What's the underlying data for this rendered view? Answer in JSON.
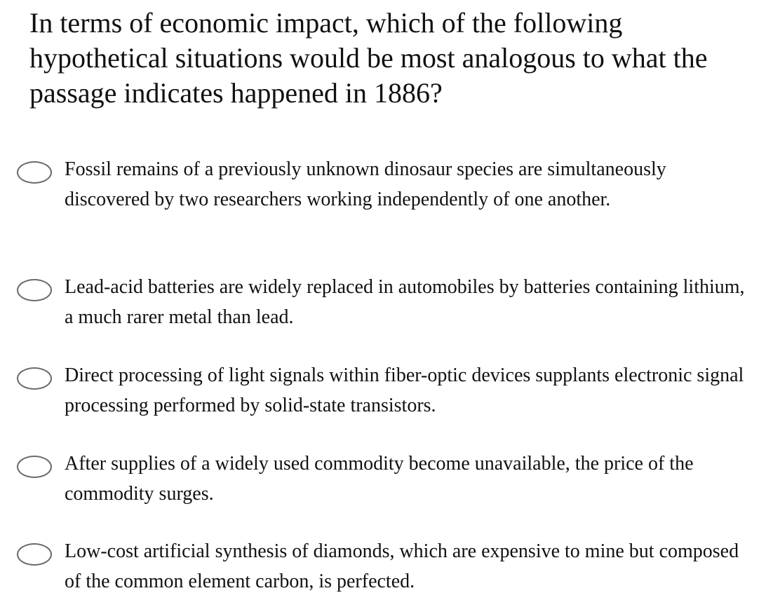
{
  "question": {
    "text": "In terms of economic impact, which of the following hypothetical situations would be most analogous to what the passage indicates happened in 1886?"
  },
  "options": [
    {
      "label": "Fossil remains of a previously unknown dinosaur species are simultaneously discovered by two researchers working independently of one another.",
      "selected": false
    },
    {
      "label": "Lead-acid batteries are widely replaced in automobiles by batteries containing lithium, a much rarer metal than lead.",
      "selected": false
    },
    {
      "label": "Direct processing of light signals within fiber-optic devices supplants electronic signal processing performed by solid-state transistors.",
      "selected": false
    },
    {
      "label": "After supplies of a widely used commodity become unavailable, the price of the commodity surges.",
      "selected": false
    },
    {
      "label": "Low-cost artificial synthesis of diamonds, which are expensive to mine but composed of the common element carbon, is perfected.",
      "selected": false
    }
  ]
}
